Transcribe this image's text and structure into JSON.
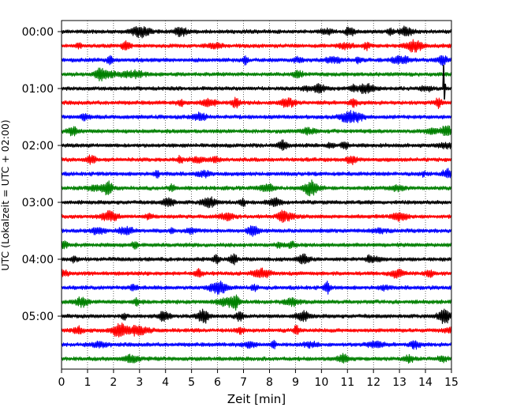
{
  "chart_data": {
    "type": "line",
    "subtype": "helicorder",
    "xlabel": "Zeit  [min]",
    "ylabel": "UTC (Lokalzeit = UTC + 02:00)",
    "xlim": [
      0,
      15
    ],
    "x_ticks": [
      0,
      1,
      2,
      3,
      4,
      5,
      6,
      7,
      8,
      9,
      10,
      11,
      12,
      13,
      14,
      15
    ],
    "y_tick_labels": [
      "00:00",
      "01:00",
      "02:00",
      "03:00",
      "04:00",
      "05:00"
    ],
    "line_interval_min": 15,
    "grid": "vertical-dotted",
    "trace_colors": [
      "#000000",
      "#ff0000",
      "#0000ff",
      "#008000"
    ],
    "traces": [
      {
        "start": "00:00",
        "color": "#000000"
      },
      {
        "start": "00:15",
        "color": "#ff0000"
      },
      {
        "start": "00:30",
        "color": "#0000ff"
      },
      {
        "start": "00:45",
        "color": "#008000"
      },
      {
        "start": "01:00",
        "color": "#000000",
        "events": [
          {
            "x": 14.7,
            "amplitude": "large"
          }
        ]
      },
      {
        "start": "01:15",
        "color": "#ff0000"
      },
      {
        "start": "01:30",
        "color": "#0000ff"
      },
      {
        "start": "01:45",
        "color": "#008000"
      },
      {
        "start": "02:00",
        "color": "#000000"
      },
      {
        "start": "02:15",
        "color": "#ff0000"
      },
      {
        "start": "02:30",
        "color": "#0000ff"
      },
      {
        "start": "02:45",
        "color": "#008000"
      },
      {
        "start": "03:00",
        "color": "#000000"
      },
      {
        "start": "03:15",
        "color": "#ff0000"
      },
      {
        "start": "03:30",
        "color": "#0000ff"
      },
      {
        "start": "03:45",
        "color": "#008000"
      },
      {
        "start": "04:00",
        "color": "#000000"
      },
      {
        "start": "04:15",
        "color": "#ff0000"
      },
      {
        "start": "04:30",
        "color": "#0000ff"
      },
      {
        "start": "04:45",
        "color": "#008000"
      },
      {
        "start": "05:00",
        "color": "#000000"
      },
      {
        "start": "05:15",
        "color": "#ff0000"
      },
      {
        "start": "05:30",
        "color": "#0000ff"
      },
      {
        "start": "05:45",
        "color": "#008000"
      }
    ]
  }
}
